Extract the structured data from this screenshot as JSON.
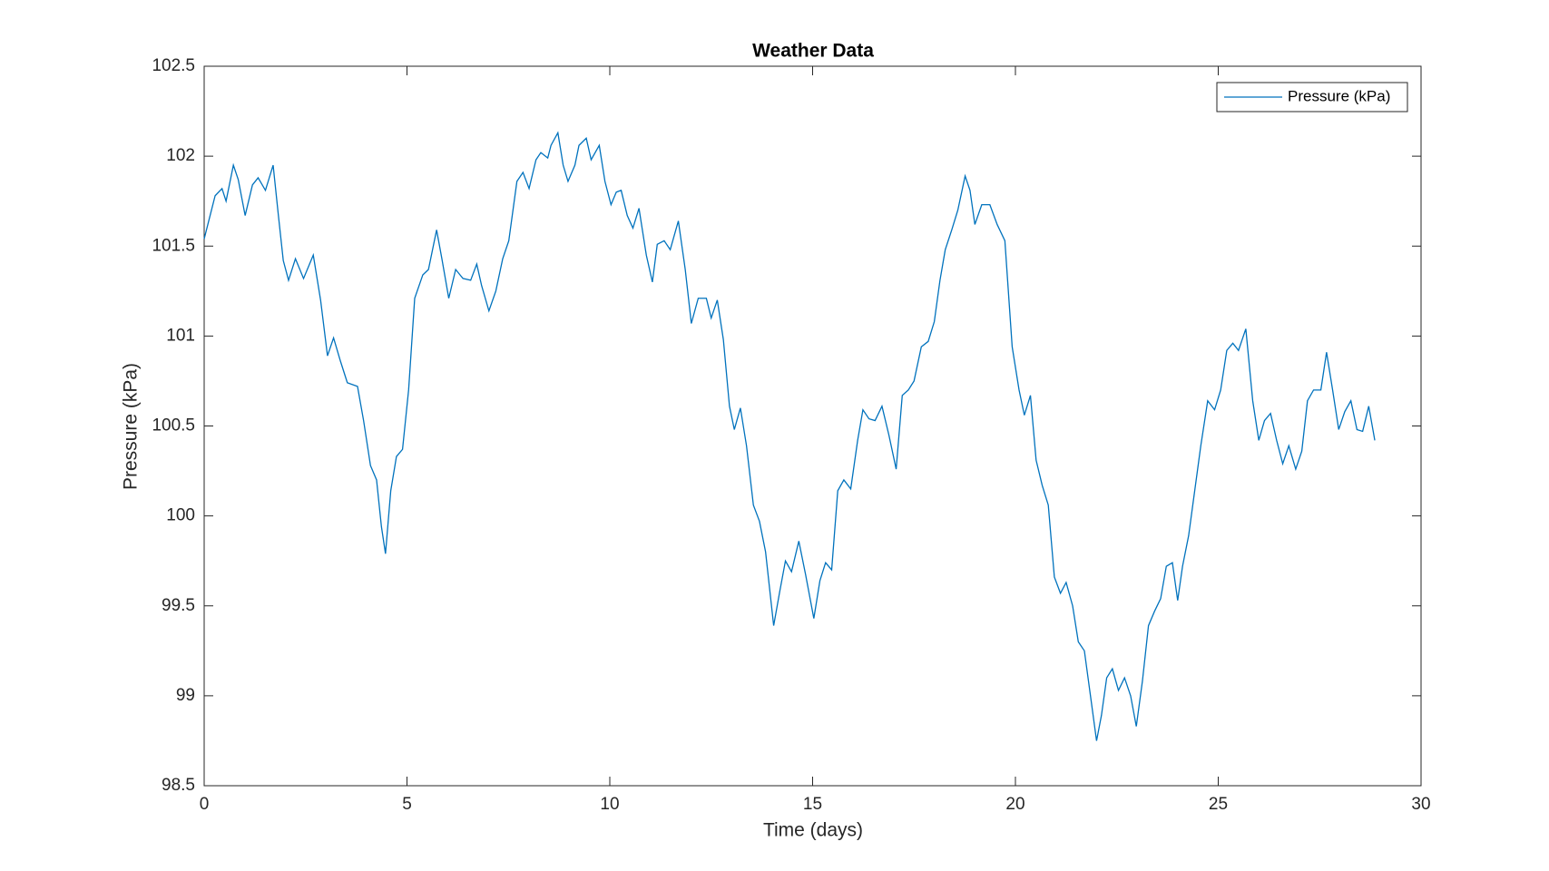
{
  "chart_data": {
    "type": "line",
    "title": "Weather Data",
    "xlabel": "Time (days)",
    "ylabel": "Pressure (kPa)",
    "x": [
      0,
      0.27,
      0.44,
      0.54,
      0.72,
      0.84,
      1.01,
      1.19,
      1.33,
      1.51,
      1.7,
      1.83,
      1.95,
      2.08,
      2.25,
      2.45,
      2.69,
      2.87,
      3.04,
      3.19,
      3.36,
      3.53,
      3.78,
      3.93,
      4.1,
      4.25,
      4.37,
      4.47,
      4.6,
      4.74,
      4.89,
      5.04,
      5.19,
      5.39,
      5.53,
      5.73,
      5.86,
      6.03,
      6.2,
      6.38,
      6.57,
      6.72,
      6.84,
      7.02,
      7.19,
      7.36,
      7.51,
      7.71,
      7.86,
      8.01,
      8.18,
      8.3,
      8.47,
      8.55,
      8.72,
      8.85,
      8.97,
      9.14,
      9.24,
      9.42,
      9.54,
      9.74,
      9.88,
      10.03,
      10.16,
      10.28,
      10.43,
      10.57,
      10.72,
      10.9,
      11.05,
      11.17,
      11.34,
      11.49,
      11.69,
      11.86,
      12.01,
      12.18,
      12.38,
      12.5,
      12.65,
      12.8,
      12.95,
      13.07,
      13.22,
      13.37,
      13.54,
      13.69,
      13.84,
      14.04,
      14.19,
      14.33,
      14.48,
      14.66,
      14.83,
      15.03,
      15.18,
      15.32,
      15.47,
      15.62,
      15.77,
      15.94,
      16.11,
      16.24,
      16.39,
      16.54,
      16.71,
      16.88,
      17.06,
      17.21,
      17.36,
      17.5,
      17.68,
      17.85,
      18,
      18.14,
      18.27,
      18.43,
      18.58,
      18.76,
      18.88,
      19,
      19.17,
      19.37,
      19.55,
      19.74,
      19.92,
      20.09,
      20.22,
      20.37,
      20.51,
      20.66,
      20.81,
      20.96,
      21.11,
      21.25,
      21.41,
      21.55,
      21.7,
      21.85,
      22,
      22.12,
      22.25,
      22.39,
      22.54,
      22.69,
      22.84,
      22.98,
      23.13,
      23.28,
      23.43,
      23.58,
      23.72,
      23.87,
      24,
      24.12,
      24.27,
      24.42,
      24.57,
      24.74,
      24.91,
      25.06,
      25.21,
      25.36,
      25.5,
      25.68,
      25.85,
      26,
      26.14,
      26.29,
      26.44,
      26.59,
      26.74,
      26.91,
      27.06,
      27.2,
      27.35,
      27.53,
      27.67,
      27.82,
      27.97,
      28.12,
      28.27,
      28.42,
      28.56,
      28.71,
      28.86
    ],
    "series": [
      {
        "name": "Pressure (kPa)",
        "color": "#0072bd",
        "values": [
          101.54,
          101.78,
          101.82,
          101.75,
          101.95,
          101.87,
          101.67,
          101.84,
          101.88,
          101.81,
          101.95,
          101.67,
          101.42,
          101.31,
          101.43,
          101.32,
          101.45,
          101.2,
          100.89,
          100.99,
          100.86,
          100.74,
          100.72,
          100.53,
          100.28,
          100.2,
          99.94,
          99.79,
          100.14,
          100.33,
          100.37,
          100.7,
          101.21,
          101.34,
          101.37,
          101.59,
          101.43,
          101.21,
          101.37,
          101.32,
          101.31,
          101.4,
          101.28,
          101.14,
          101.25,
          101.43,
          101.53,
          101.86,
          101.91,
          101.82,
          101.98,
          102.02,
          101.99,
          102.06,
          102.13,
          101.95,
          101.86,
          101.95,
          102.06,
          102.1,
          101.98,
          102.06,
          101.86,
          101.73,
          101.8,
          101.81,
          101.67,
          101.6,
          101.71,
          101.45,
          101.3,
          101.51,
          101.53,
          101.48,
          101.64,
          101.37,
          101.07,
          101.21,
          101.21,
          101.1,
          101.2,
          100.98,
          100.61,
          100.48,
          100.6,
          100.39,
          100.06,
          99.97,
          99.8,
          99.39,
          99.58,
          99.75,
          99.69,
          99.86,
          99.67,
          99.43,
          99.64,
          99.74,
          99.7,
          100.14,
          100.2,
          100.15,
          100.42,
          100.59,
          100.54,
          100.53,
          100.61,
          100.45,
          100.26,
          100.67,
          100.7,
          100.75,
          100.94,
          100.97,
          101.08,
          101.31,
          101.48,
          101.59,
          101.7,
          101.89,
          101.81,
          101.62,
          101.73,
          101.73,
          101.62,
          101.53,
          100.94,
          100.7,
          100.56,
          100.67,
          100.31,
          100.17,
          100.06,
          99.66,
          99.57,
          99.63,
          99.5,
          99.3,
          99.25,
          99,
          98.75,
          98.89,
          99.1,
          99.15,
          99.03,
          99.1,
          99,
          98.83,
          99.08,
          99.39,
          99.47,
          99.54,
          99.72,
          99.74,
          99.53,
          99.72,
          99.89,
          100.14,
          100.39,
          100.64,
          100.59,
          100.7,
          100.92,
          100.96,
          100.92,
          101.04,
          100.64,
          100.42,
          100.53,
          100.57,
          100.42,
          100.29,
          100.39,
          100.26,
          100.36,
          100.64,
          100.7,
          100.7,
          100.91,
          100.7,
          100.48,
          100.58,
          100.64,
          100.48,
          100.47,
          100.61,
          100.42
        ]
      }
    ],
    "xlim": [
      0,
      30
    ],
    "xticks": [
      0,
      5,
      10,
      15,
      20,
      25,
      30
    ],
    "ylim": [
      98.5,
      102.5
    ],
    "yticks": [
      98.5,
      99,
      99.5,
      100,
      100.5,
      101,
      101.5,
      102,
      102.5
    ],
    "grid": false,
    "legend": "northeast"
  }
}
